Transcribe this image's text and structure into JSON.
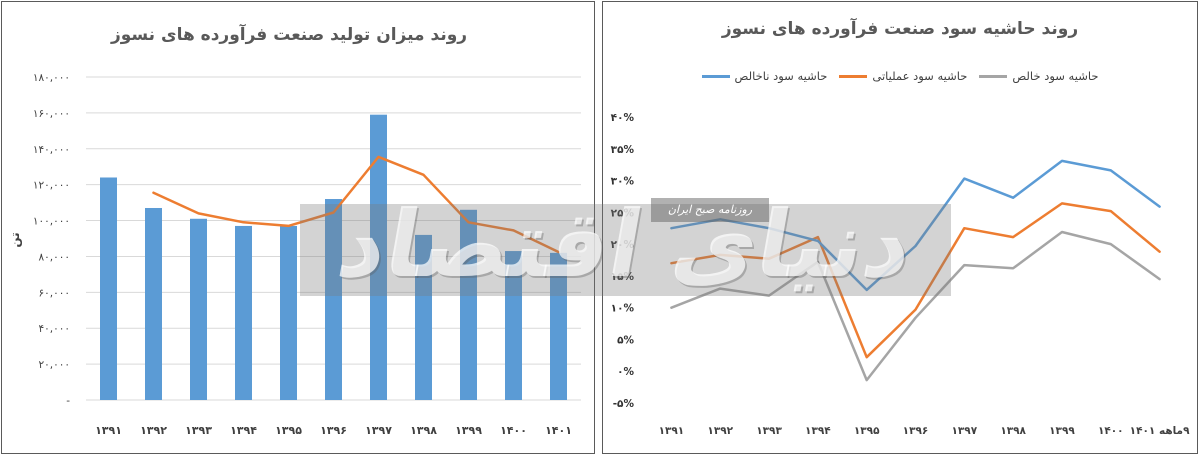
{
  "chart_data": [
    {
      "type": "bar",
      "title": "روند میزان تولید صنعت فرآورده های نسوز",
      "ylabel": "تن",
      "categories": [
        "۱۳۹۱",
        "۱۳۹۲",
        "۱۳۹۳",
        "۱۳۹۴",
        "۱۳۹۵",
        "۱۳۹۶",
        "۱۳۹۷",
        "۱۳۹۸",
        "۱۳۹۹",
        "۱۴۰۰",
        "۱۴۰۱"
      ],
      "series": [
        {
          "type": "bar",
          "color": "#5B9BD5",
          "values": [
            124000,
            107000,
            101000,
            97000,
            97000,
            112000,
            159000,
            92000,
            106000,
            83000,
            82000
          ]
        },
        {
          "type": "line",
          "color": "#ED7D31",
          "values": [
            null,
            115500,
            104000,
            99000,
            97000,
            104500,
            135500,
            125500,
            99000,
            94500,
            82500
          ]
        }
      ],
      "ylim": [
        0,
        180000
      ],
      "yticks": [
        0,
        20000,
        40000,
        60000,
        80000,
        100000,
        120000,
        140000,
        160000,
        180000
      ],
      "ytick_labels": [
        "-",
        "۲۰,۰۰۰",
        "۴۰,۰۰۰",
        "۶۰,۰۰۰",
        "۸۰,۰۰۰",
        "۱۰۰,۰۰۰",
        "۱۲۰,۰۰۰",
        "۱۴۰,۰۰۰",
        "۱۶۰,۰۰۰",
        "۱۸۰,۰۰۰"
      ],
      "grid": true,
      "legend": "none"
    },
    {
      "type": "line",
      "title": "روند حاشیه سود صنعت فرآورده های نسوز",
      "categories": [
        "۱۳۹۱",
        "۱۳۹۲",
        "۱۳۹۳",
        "۱۳۹۴",
        "۱۳۹۵",
        "۱۳۹۶",
        "۱۳۹۷",
        "۱۳۹۸",
        "۱۳۹۹",
        "۱۴۰۰",
        "۹ماهه ۱۴۰۱"
      ],
      "series": [
        {
          "name": "حاشیه سود ناخالص",
          "color": "#5B9BD5",
          "values": [
            22.5,
            23.9,
            22.5,
            20.5,
            12.8,
            19.7,
            30.3,
            27.3,
            33.1,
            31.6,
            25.9
          ]
        },
        {
          "name": "حاشیه سود عملیاتی",
          "color": "#ED7D31",
          "values": [
            17.0,
            18.3,
            17.7,
            21.1,
            2.2,
            9.7,
            22.5,
            21.1,
            26.4,
            25.2,
            18.8
          ]
        },
        {
          "name": "حاشیه سود خالص",
          "color": "#A5A5A5",
          "values": [
            10.0,
            13.0,
            11.9,
            17.2,
            -1.4,
            8.4,
            16.7,
            16.2,
            21.9,
            20.0,
            14.5
          ]
        }
      ],
      "ylim": [
        -5,
        40
      ],
      "yticks": [
        -5,
        0,
        5,
        10,
        15,
        20,
        25,
        30,
        35,
        40
      ],
      "ytick_labels": [
        "-۵%",
        "۰%",
        "۵%",
        "۱۰%",
        "۱۵%",
        "۲۰%",
        "۲۵%",
        "۳۰%",
        "۳۵%",
        "۴۰%"
      ],
      "grid": false,
      "legend": "top"
    }
  ],
  "watermark": {
    "logo": "دنیای اقتصاد",
    "tagline": "روزنامه صبح ایران"
  }
}
